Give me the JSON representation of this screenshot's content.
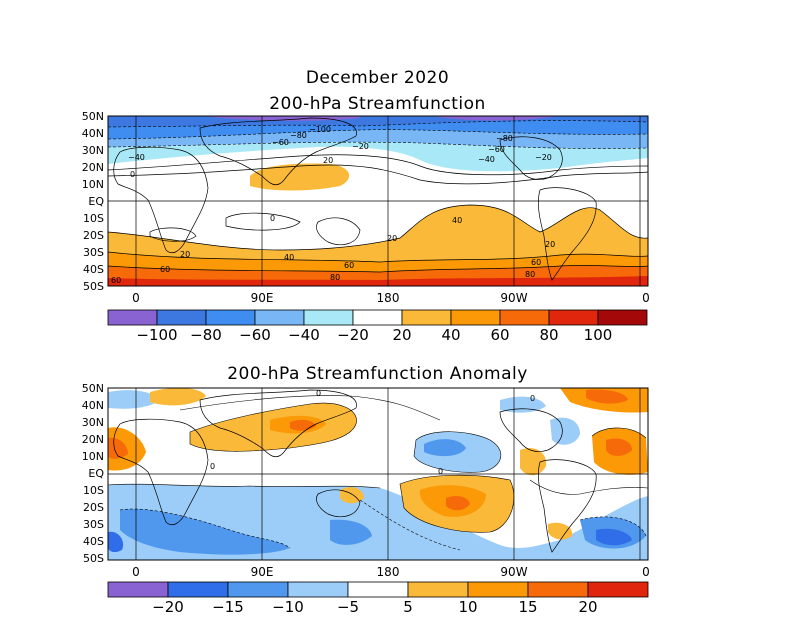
{
  "title": "December 2020",
  "panels": [
    {
      "title": "200-hPa Streamfunction",
      "lat_labels": [
        "50N",
        "40N",
        "30N",
        "20N",
        "10N",
        "EQ",
        "10S",
        "20S",
        "30S",
        "40S",
        "50S"
      ],
      "lon_labels": [
        "0",
        "90E",
        "180",
        "90W",
        "0"
      ],
      "colorbar": {
        "ticks": [
          "−100",
          "−80",
          "−60",
          "−40",
          "−20",
          "20",
          "40",
          "60",
          "80",
          "100"
        ],
        "colors": [
          "#8a63d2",
          "#3c78e0",
          "#3f8df0",
          "#78b6f6",
          "#a9e8f6",
          "#ffffff",
          "#fbb939",
          "#fb9a06",
          "#f76a0a",
          "#e0260c",
          "#a40808"
        ]
      },
      "contour_labels": [
        "−100",
        "−80",
        "−60",
        "−40",
        "−20",
        "0",
        "20",
        "40",
        "60",
        "80"
      ]
    },
    {
      "title": "200-hPa Streamfunction Anomaly",
      "lat_labels": [
        "50N",
        "40N",
        "30N",
        "20N",
        "10N",
        "EQ",
        "10S",
        "20S",
        "30S",
        "40S",
        "50S"
      ],
      "lon_labels": [
        "0",
        "90E",
        "180",
        "90W",
        "0"
      ],
      "colorbar": {
        "ticks": [
          "−20",
          "−15",
          "−10",
          "−5",
          "5",
          "10",
          "15",
          "20"
        ],
        "colors": [
          "#8a63d2",
          "#2f6ee8",
          "#4f98ee",
          "#9ccdf8",
          "#ffffff",
          "#fbb939",
          "#fb9a06",
          "#f76a0a",
          "#e0260c"
        ]
      },
      "contour_labels": [
        "0"
      ]
    }
  ]
}
